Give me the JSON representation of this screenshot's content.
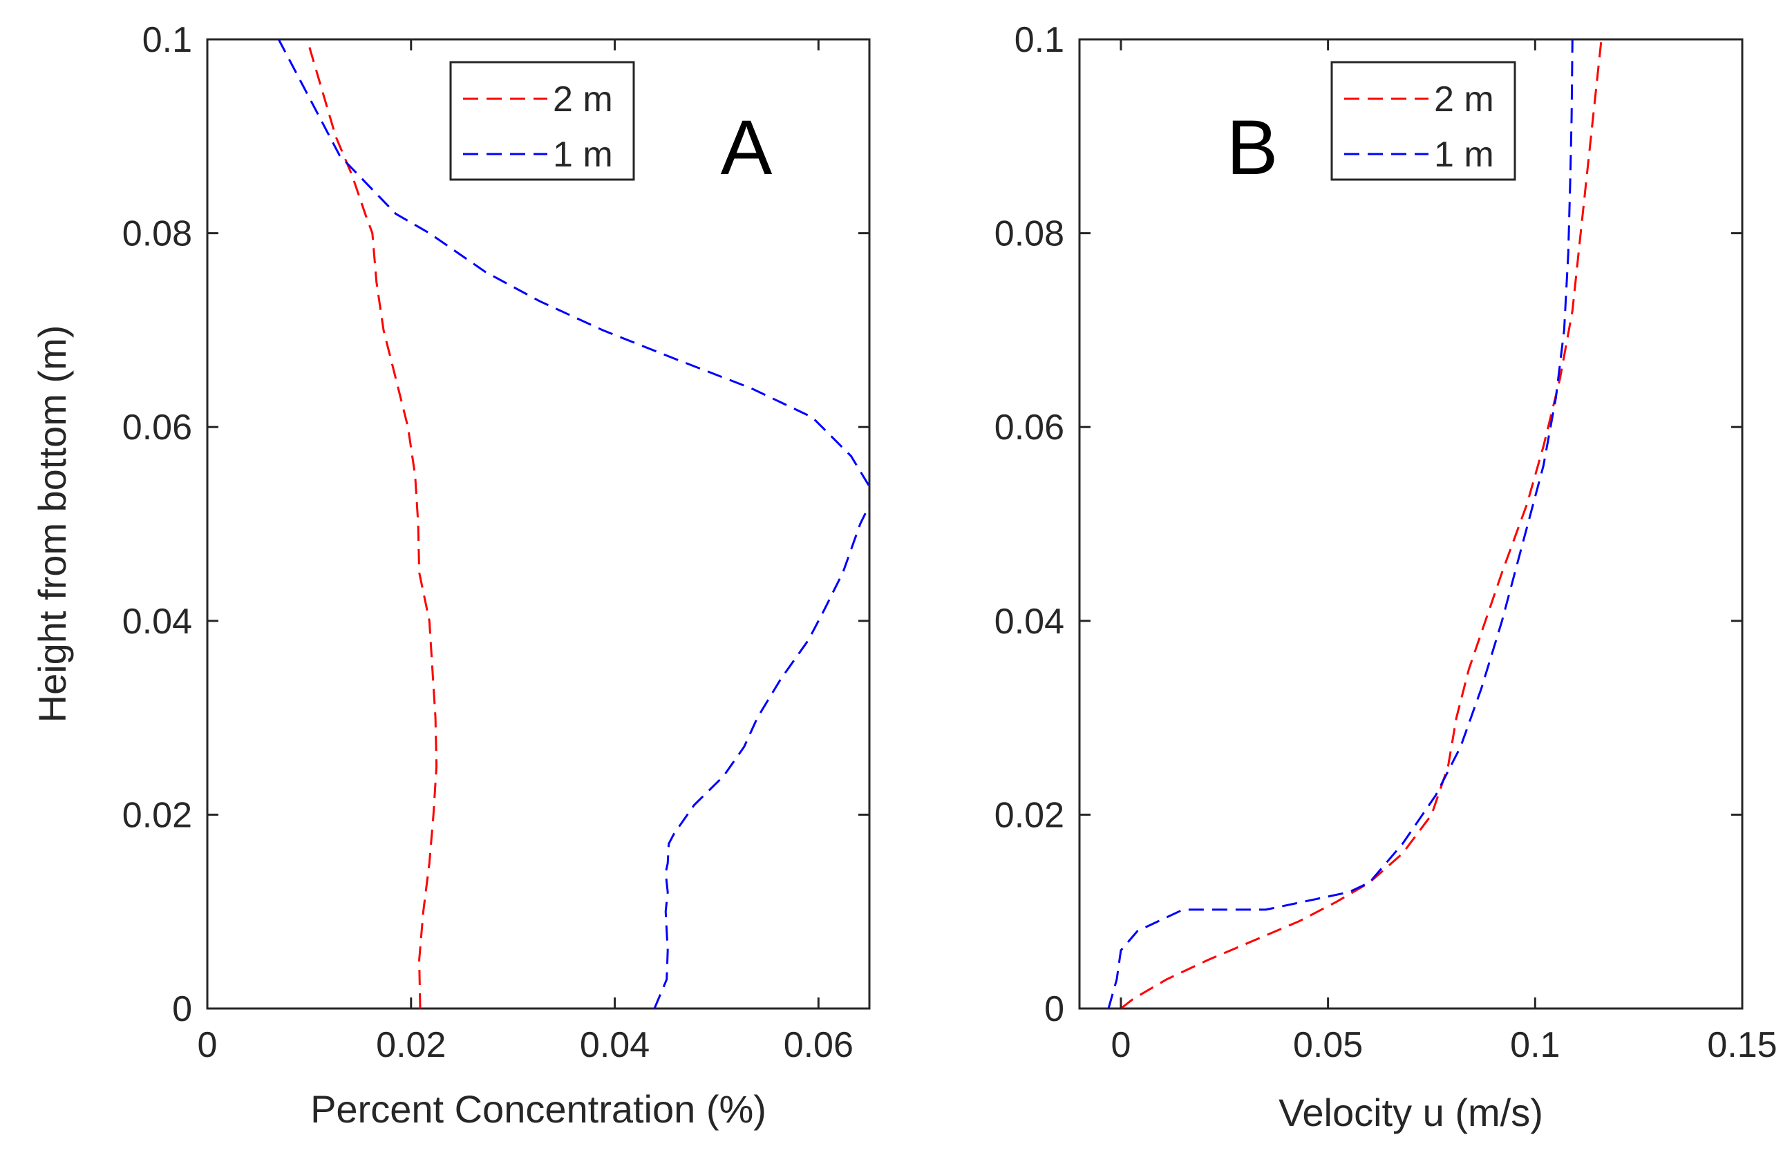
{
  "chart_data": [
    {
      "type": "line",
      "panel_label": "A",
      "title": "",
      "xlabel": "Percent Concentration (%)",
      "ylabel": "Height from bottom (m)",
      "xlim": [
        0,
        0.065
      ],
      "ylim": [
        0,
        0.1
      ],
      "xticks": [
        0,
        0.02,
        0.04,
        0.06
      ],
      "xtick_labels": [
        "0",
        "0.02",
        "0.04",
        "0.06"
      ],
      "yticks": [
        0,
        0.02,
        0.04,
        0.06,
        0.08,
        0.1
      ],
      "ytick_labels": [
        "0",
        "0.02",
        "0.04",
        "0.06",
        "0.08",
        "0.1"
      ],
      "grid": false,
      "legend_position": "top-center",
      "series": [
        {
          "name": "2 m",
          "color": "#ff0000",
          "style": "dashed",
          "x": [
            0.0209,
            0.0208,
            0.0212,
            0.0218,
            0.0222,
            0.0225,
            0.0224,
            0.0221,
            0.0218,
            0.0208,
            0.0207,
            0.0204,
            0.0197,
            0.0185,
            0.0173,
            0.0166,
            0.0162,
            0.0155,
            0.0142,
            0.0126,
            0.0098
          ],
          "y": [
            0,
            0.005,
            0.01,
            0.015,
            0.02,
            0.025,
            0.03,
            0.035,
            0.04,
            0.045,
            0.05,
            0.055,
            0.06,
            0.065,
            0.07,
            0.075,
            0.08,
            0.082,
            0.086,
            0.09,
            0.1
          ]
        },
        {
          "name": "1 m",
          "color": "#0000ff",
          "style": "dashed",
          "x": [
            0.0439,
            0.0451,
            0.0452,
            0.0451,
            0.045,
            0.0452,
            0.045,
            0.0452,
            0.0453,
            0.0458,
            0.0478,
            0.0507,
            0.0527,
            0.054,
            0.0563,
            0.059,
            0.0605,
            0.0624,
            0.0641,
            0.0655,
            0.0632,
            0.0594,
            0.0534,
            0.046,
            0.0388,
            0.0326,
            0.0273,
            0.0218,
            0.0185,
            0.013,
            0.007
          ],
          "y": [
            0,
            0.003,
            0.006,
            0.008,
            0.01,
            0.012,
            0.014,
            0.015,
            0.017,
            0.018,
            0.021,
            0.024,
            0.027,
            0.03,
            0.034,
            0.038,
            0.041,
            0.045,
            0.05,
            0.053,
            0.057,
            0.061,
            0.064,
            0.067,
            0.07,
            0.073,
            0.076,
            0.08,
            0.082,
            0.088,
            0.1
          ]
        }
      ]
    },
    {
      "type": "line",
      "panel_label": "B",
      "title": "",
      "xlabel": "Velocity u (m/s)",
      "ylabel": "",
      "xlim": [
        -0.01,
        0.15
      ],
      "ylim": [
        0,
        0.1
      ],
      "xticks": [
        0,
        0.05,
        0.1,
        0.15
      ],
      "xtick_labels": [
        "0",
        "0.05",
        "0.1",
        "0.15"
      ],
      "yticks": [
        0,
        0.02,
        0.04,
        0.06,
        0.08,
        0.1
      ],
      "ytick_labels": [
        "0",
        "0.02",
        "0.04",
        "0.06",
        "0.08",
        "0.1"
      ],
      "grid": false,
      "legend_position": "top-center",
      "series": [
        {
          "name": "2 m",
          "color": "#ff0000",
          "style": "dashed",
          "x": [
            0.0,
            0.003,
            0.011,
            0.021,
            0.032,
            0.043,
            0.052,
            0.06,
            0.068,
            0.075,
            0.079,
            0.081,
            0.084,
            0.088,
            0.092,
            0.098,
            0.102,
            0.106,
            0.109,
            0.111,
            0.113,
            0.116
          ],
          "y": [
            0,
            0.001,
            0.003,
            0.005,
            0.007,
            0.009,
            0.011,
            0.013,
            0.016,
            0.02,
            0.025,
            0.03,
            0.035,
            0.04,
            0.045,
            0.052,
            0.058,
            0.065,
            0.072,
            0.08,
            0.088,
            0.1
          ]
        },
        {
          "name": "1 m",
          "color": "#0000ff",
          "style": "dashed",
          "x": [
            -0.003,
            -0.001,
            0.0,
            0.004,
            0.015,
            0.035,
            0.055,
            0.06,
            0.068,
            0.076,
            0.082,
            0.087,
            0.092,
            0.097,
            0.102,
            0.105,
            0.107,
            0.108,
            0.1085,
            0.1088,
            0.109
          ],
          "y": [
            0,
            0.003,
            0.006,
            0.008,
            0.0102,
            0.0102,
            0.012,
            0.013,
            0.017,
            0.022,
            0.027,
            0.033,
            0.04,
            0.048,
            0.056,
            0.063,
            0.07,
            0.078,
            0.086,
            0.092,
            0.1
          ]
        }
      ]
    }
  ]
}
